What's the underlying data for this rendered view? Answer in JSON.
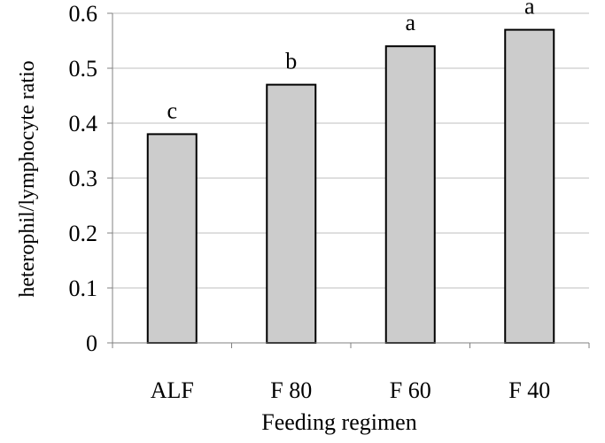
{
  "chart_data": {
    "type": "bar",
    "title": "",
    "xlabel": "Feeding regimen",
    "ylabel": "heterophil/lymphocyte ratio",
    "categories": [
      "ALF",
      "F 80",
      "F 60",
      "F 40"
    ],
    "values": [
      0.38,
      0.47,
      0.54,
      0.57
    ],
    "bar_labels": [
      "c",
      "b",
      "a",
      "a"
    ],
    "ylim": [
      0,
      0.6
    ],
    "yticks": [
      0,
      0.1,
      0.2,
      0.3,
      0.4,
      0.5,
      0.6
    ],
    "ytick_labels": [
      "0",
      "0.1",
      "0.2",
      "0.3",
      "0.4",
      "0.5",
      "0.6"
    ],
    "grid": true,
    "legend": "none",
    "colors": {
      "bar_fill": "#cccccc",
      "bar_stroke": "#000000",
      "grid": "#bfbfbf",
      "axis": "#808080"
    }
  }
}
